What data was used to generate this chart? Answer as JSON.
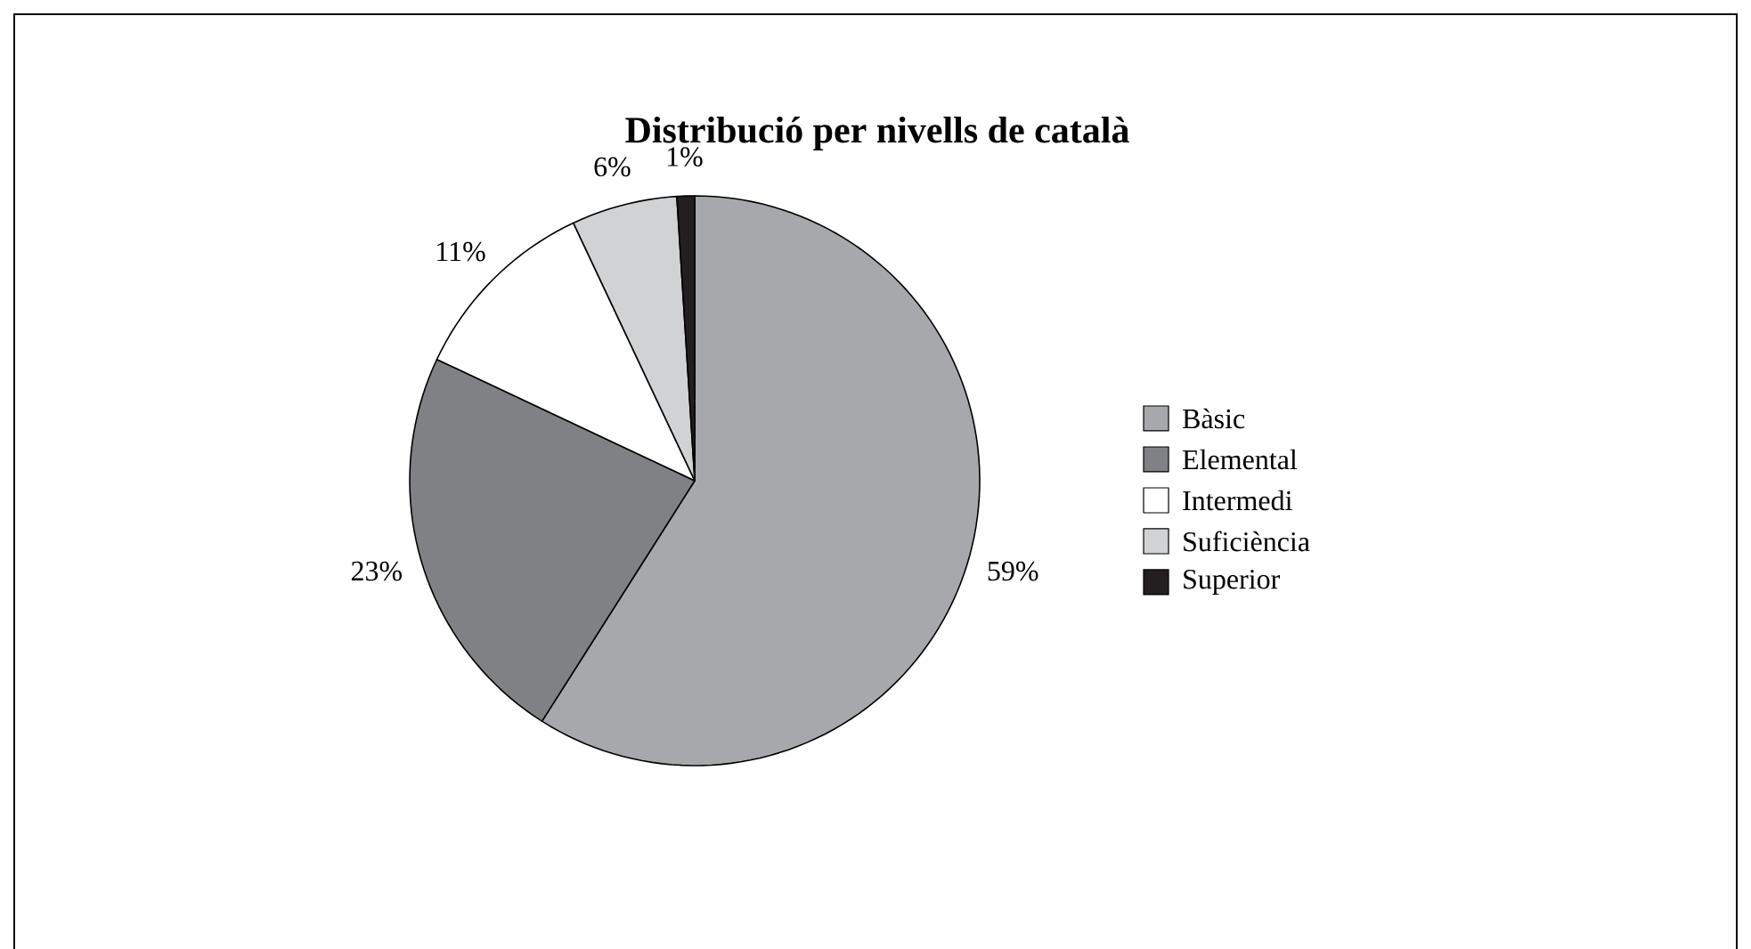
{
  "chart_data": {
    "type": "pie",
    "title": "Distribució per nivells de català",
    "categories": [
      "Bàsic",
      "Elemental",
      "Intermedi",
      "Suficiència",
      "Superior"
    ],
    "values": [
      59,
      23,
      11,
      6,
      1
    ],
    "value_labels": [
      "59%",
      "23%",
      "11%",
      "6%",
      "1%"
    ],
    "colors": [
      "#a7a8ab",
      "#808184",
      "#ffffff",
      "#d1d2d4",
      "#231f20"
    ],
    "legend": "right"
  }
}
